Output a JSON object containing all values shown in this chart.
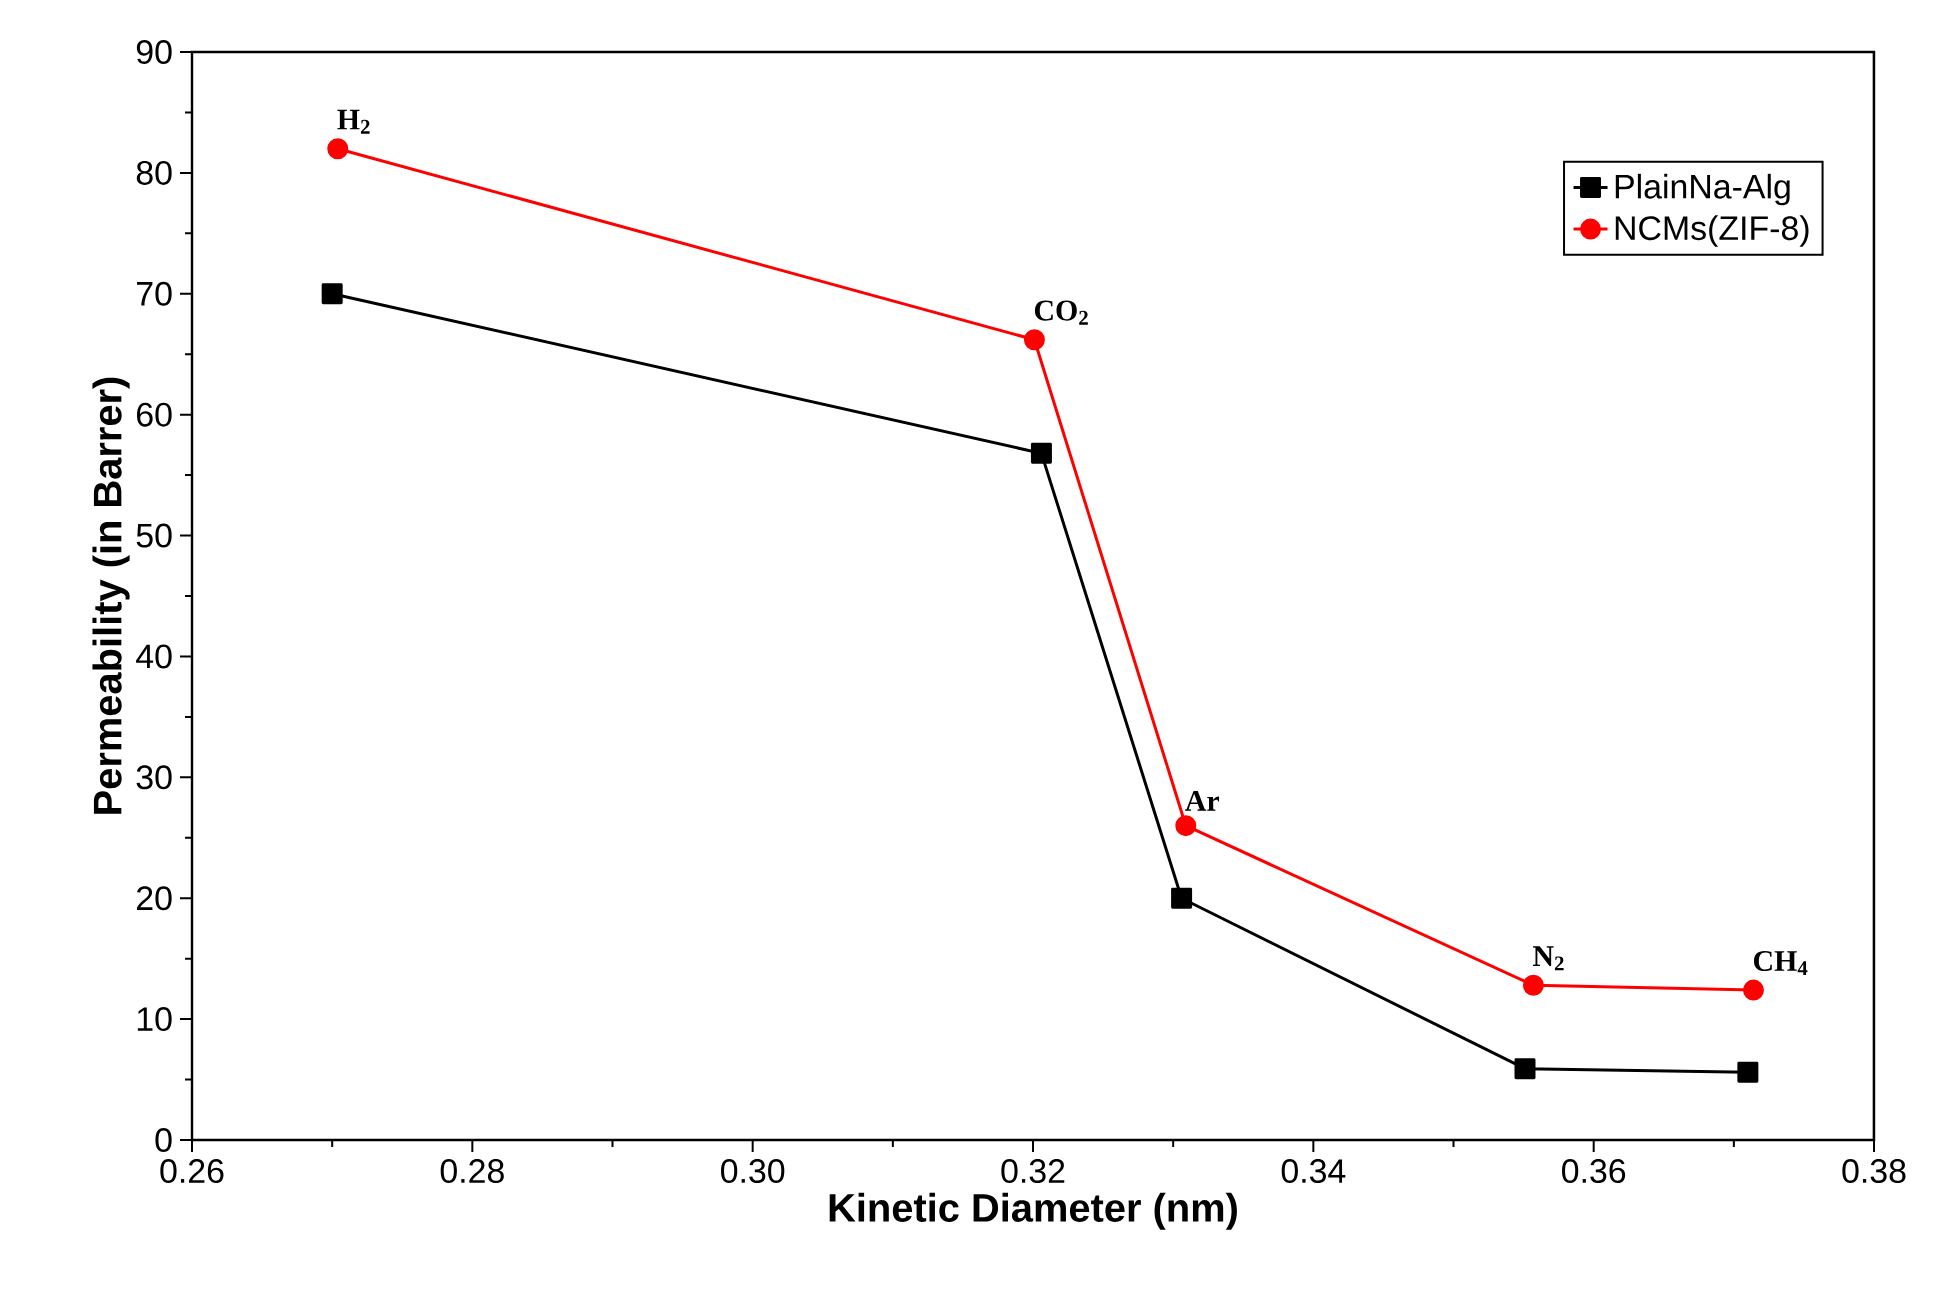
{
  "chart_data": {
    "type": "line",
    "xlabel": "Kinetic Diameter (nm)",
    "ylabel": "Permeability (in Barrer)",
    "xlim": [
      0.26,
      0.38
    ],
    "xticks": [
      {
        "value": 0.26,
        "label": "0.26"
      },
      {
        "value": 0.28,
        "label": "0.28"
      },
      {
        "value": 0.3,
        "label": "0.30"
      },
      {
        "value": 0.32,
        "label": "0.32"
      },
      {
        "value": 0.34,
        "label": "0.34"
      },
      {
        "value": 0.36,
        "label": "0.36"
      },
      {
        "value": 0.38,
        "label": "0.38"
      }
    ],
    "ylim": [
      0,
      90
    ],
    "yticks": [
      0,
      10,
      20,
      30,
      40,
      50,
      60,
      70,
      80,
      90
    ],
    "legend": "top right",
    "grid": false,
    "series": [
      {
        "name": "PlainNa-Alg",
        "color": "#000000",
        "marker": "square",
        "x": [
          0.27,
          0.3206,
          0.3306,
          0.3551,
          0.371
        ],
        "values": [
          70,
          56.8,
          20,
          5.9,
          5.6
        ]
      },
      {
        "name": "NCMs(ZIF-8)",
        "color": "#ff0000",
        "marker": "circle",
        "x": [
          0.2704,
          0.3201,
          0.3309,
          0.3557,
          0.3714
        ],
        "values": [
          82,
          66.2,
          26,
          12.8,
          12.4
        ]
      }
    ],
    "annotations": [
      {
        "text": "H$_{2}$",
        "x": 0.2704,
        "y": 82
      },
      {
        "text": "CO$_{2}$",
        "x": 0.3201,
        "y": 66.2
      },
      {
        "text": "Ar",
        "x": 0.3309,
        "y": 26
      },
      {
        "text": "N$_{2}$",
        "x": 0.3557,
        "y": 12.8
      },
      {
        "text": "CH$_{4}$",
        "x": 0.3714,
        "y": 12.4
      }
    ]
  }
}
